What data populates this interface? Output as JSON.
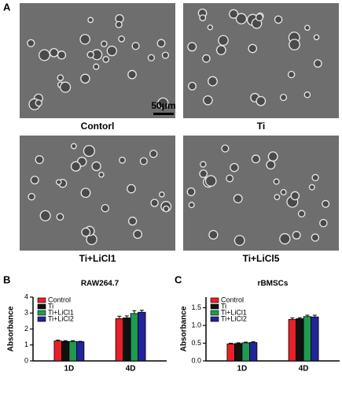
{
  "panel_a": {
    "label": "A",
    "scale_bar": "50μm",
    "images": [
      {
        "label": "Contorl"
      },
      {
        "label": "Ti"
      },
      {
        "label": "Ti+LiCl1"
      },
      {
        "label": "Ti+LiCl5"
      }
    ]
  },
  "chart_data": [
    {
      "type": "bar",
      "panel": "B",
      "title": "RAW264.7",
      "y_label": "Absorbance",
      "categories": [
        "1D",
        "4D"
      ],
      "series": [
        {
          "name": "Control",
          "color": "#e8202a",
          "values": [
            1.25,
            2.65
          ],
          "errors": [
            0.05,
            0.15
          ]
        },
        {
          "name": "Ti",
          "color": "#111111",
          "values": [
            1.22,
            2.7
          ],
          "errors": [
            0.05,
            0.12
          ]
        },
        {
          "name": "Ti+LiCl1",
          "color": "#1f9a52",
          "values": [
            1.22,
            2.97
          ],
          "errors": [
            0.05,
            0.18
          ]
        },
        {
          "name": "Ti+LiCl2",
          "color": "#23239a",
          "values": [
            1.2,
            3.05
          ],
          "errors": [
            0.03,
            0.12
          ]
        }
      ],
      "ylim": [
        0,
        4
      ],
      "yticks": [
        0,
        1,
        2,
        3,
        4
      ],
      "legend": "upper left"
    },
    {
      "type": "bar",
      "panel": "C",
      "title": "rBMSCs",
      "y_label": "Absorbance",
      "categories": [
        "1D",
        "4D"
      ],
      "series": [
        {
          "name": "Control",
          "color": "#e8202a",
          "values": [
            0.48,
            1.17
          ],
          "errors": [
            0.02,
            0.04
          ]
        },
        {
          "name": "Ti",
          "color": "#111111",
          "values": [
            0.49,
            1.19
          ],
          "errors": [
            0.02,
            0.03
          ]
        },
        {
          "name": "Ti+LiCl1",
          "color": "#1f9a52",
          "values": [
            0.51,
            1.25
          ],
          "errors": [
            0.02,
            0.04
          ]
        },
        {
          "name": "Ti+LiCl2",
          "color": "#23239a",
          "values": [
            0.52,
            1.24
          ],
          "errors": [
            0.02,
            0.05
          ]
        }
      ],
      "ylim": [
        0,
        1.8
      ],
      "yticks": [
        {
          "value": 0,
          "label": "0.0"
        },
        {
          "value": 0.5,
          "label": "0.5"
        },
        {
          "value": 1,
          "label": "1.0"
        },
        {
          "value": 1.5,
          "label": "1.5"
        }
      ],
      "legend": "upper left"
    }
  ]
}
